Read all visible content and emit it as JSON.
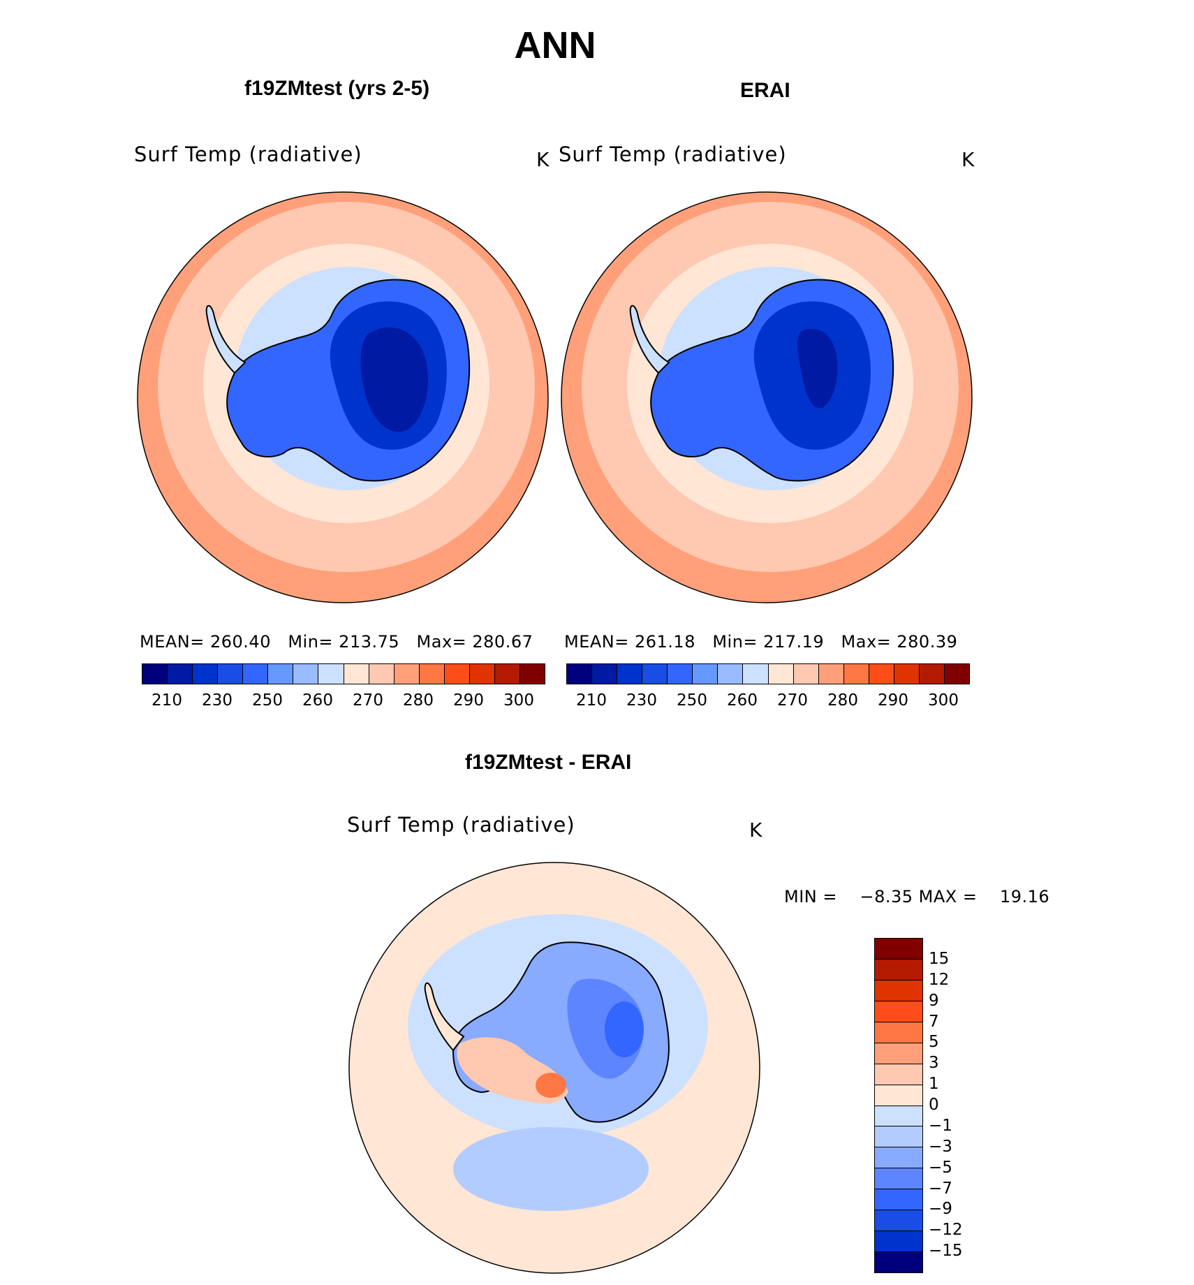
{
  "title": "ANN",
  "panels": {
    "model": {
      "title": "f19ZMtest (yrs 2-5)",
      "variable": "Surf Temp (radiative)",
      "units": "K",
      "stats": "MEAN= 260.40   Min= 213.75   Max= 280.67"
    },
    "obs": {
      "title": "ERAI",
      "variable": "Surf Temp (radiative)",
      "units": "K",
      "stats": "MEAN= 261.18   Min= 217.19   Max= 280.39"
    },
    "diff": {
      "title": "f19ZMtest - ERAI",
      "variable": "Surf Temp (radiative)",
      "units": "K",
      "stats": "MIN =    −8.35 MAX =    19.16"
    }
  },
  "colorbar_abs": {
    "colors": [
      "#00007f",
      "#001aa3",
      "#0033cc",
      "#1a4de6",
      "#3366ff",
      "#6699ff",
      "#99bbff",
      "#cce0ff",
      "#ffe6d5",
      "#ffc8b0",
      "#ffa07a",
      "#ff7744",
      "#ff4d1a",
      "#e03300",
      "#b31a00",
      "#800000"
    ],
    "tick_labels": [
      "210",
      "230",
      "250",
      "260",
      "270",
      "280",
      "290",
      "300"
    ]
  },
  "colorbar_diff": {
    "colors": [
      "#800000",
      "#b31a00",
      "#e03300",
      "#ff4d1a",
      "#ff7744",
      "#ffa07a",
      "#ffc8b0",
      "#ffe6d5",
      "#cce0ff",
      "#b3ccff",
      "#88aaff",
      "#5c85ff",
      "#3366ff",
      "#1a4de6",
      "#0033cc",
      "#00007f"
    ],
    "tick_labels": [
      "15",
      "12",
      "9",
      "7",
      "5",
      "3",
      "1",
      "0",
      "−1",
      "−3",
      "−5",
      "−7",
      "−9",
      "−12",
      "−15"
    ]
  }
}
